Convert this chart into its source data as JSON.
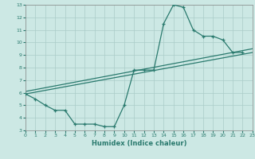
{
  "xlabel": "Humidex (Indice chaleur)",
  "background_color": "#cce8e4",
  "grid_color": "#aaccC8",
  "line_color": "#2a7a6e",
  "xlim": [
    0,
    23
  ],
  "ylim": [
    3,
    13
  ],
  "xticks": [
    0,
    1,
    2,
    3,
    4,
    5,
    6,
    7,
    8,
    9,
    10,
    11,
    12,
    13,
    14,
    15,
    16,
    17,
    18,
    19,
    20,
    21,
    22,
    23
  ],
  "yticks": [
    3,
    4,
    5,
    6,
    7,
    8,
    9,
    10,
    11,
    12,
    13
  ],
  "line1_x": [
    0,
    1,
    2,
    3,
    4,
    5,
    6,
    7,
    8,
    9,
    10,
    11,
    12,
    13,
    14,
    15,
    16,
    17,
    18,
    19,
    20,
    21,
    22
  ],
  "line1_y": [
    5.9,
    5.5,
    5.0,
    4.6,
    4.6,
    3.5,
    3.5,
    3.5,
    3.3,
    3.3,
    5.0,
    7.8,
    7.8,
    7.8,
    11.5,
    13.0,
    12.8,
    11.0,
    10.5,
    10.5,
    10.2,
    9.2,
    9.2
  ],
  "line2_x": [
    0,
    23
  ],
  "line2_y": [
    5.9,
    9.2
  ],
  "line3_x": [
    0,
    23
  ],
  "line3_y": [
    6.1,
    9.5
  ]
}
